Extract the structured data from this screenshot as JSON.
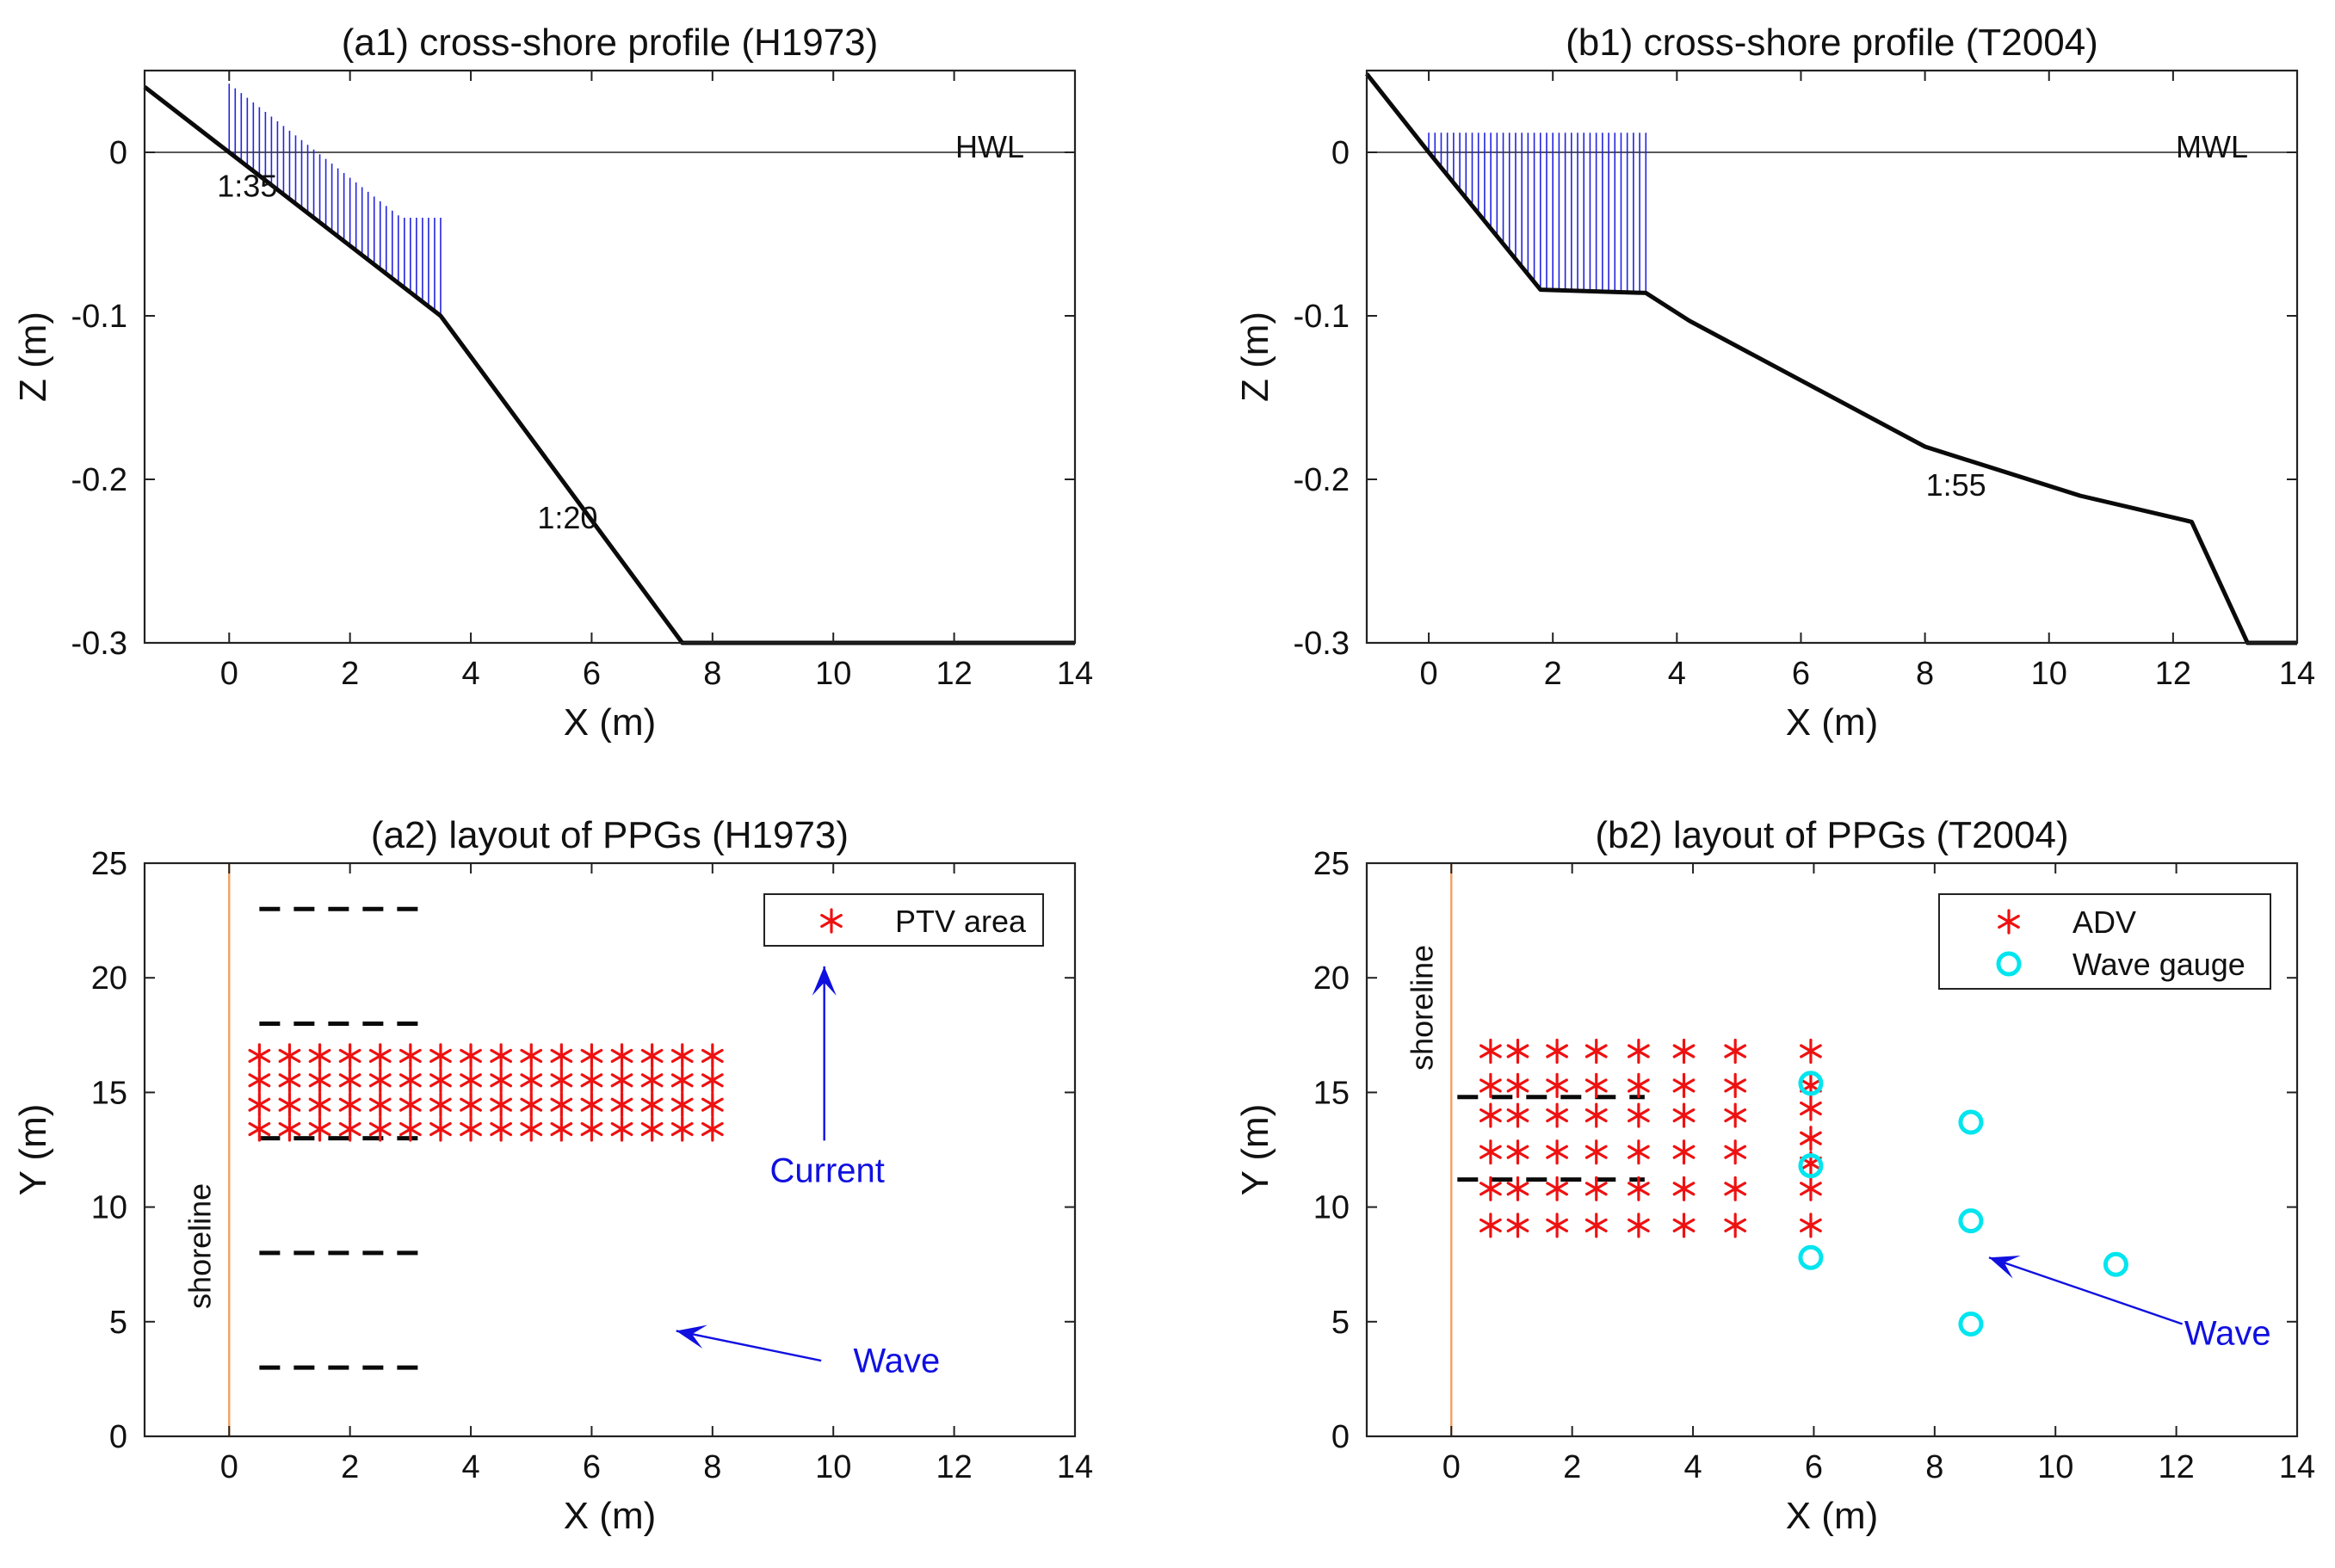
{
  "chart_data": [
    {
      "id": "a1",
      "type": "line",
      "title": "(a1) cross-shore profile (H1973)",
      "xlabel": "X (m)",
      "ylabel": "Z (m)",
      "xlim": [
        -1.4,
        14
      ],
      "ylim": [
        -0.3,
        0.05
      ],
      "xticks": [
        0,
        2,
        4,
        6,
        8,
        10,
        12,
        14
      ],
      "xtick_labels": [
        "0",
        "2",
        "4",
        "6",
        "8",
        "10",
        "12",
        "14"
      ],
      "yticks": [
        0,
        -0.1,
        -0.2,
        -0.3
      ],
      "ytick_labels": [
        "0",
        "-0.1",
        "-0.2",
        "-0.3"
      ],
      "profile": {
        "x": [
          -1.4,
          0,
          3.5,
          7.5,
          14
        ],
        "z": [
          0.04,
          0,
          -0.1,
          -0.3,
          -0.3
        ]
      },
      "water_level": 0,
      "water_level_label": "HWL",
      "measurement_lines": {
        "x_start": 0,
        "x_end": 3.5,
        "step": 0.1,
        "top": {
          "x": [
            0,
            2.85,
            3.5
          ],
          "z": [
            0.042,
            -0.04,
            -0.04
          ]
        }
      },
      "slope_labels": [
        {
          "text": "1:35",
          "x": 0.3,
          "z": -0.027
        },
        {
          "text": "1:20",
          "x": 5.6,
          "z": -0.23
        }
      ]
    },
    {
      "id": "b1",
      "type": "line",
      "title": "(b1) cross-shore profile (T2004)",
      "xlabel": "X (m)",
      "ylabel": "Z (m)",
      "xlim": [
        -1,
        14
      ],
      "ylim": [
        -0.3,
        0.05
      ],
      "xticks": [
        0,
        2,
        4,
        6,
        8,
        10,
        12,
        14
      ],
      "xtick_labels": [
        "0",
        "2",
        "4",
        "6",
        "8",
        "10",
        "12",
        "14"
      ],
      "yticks": [
        0,
        -0.1,
        -0.2,
        -0.3
      ],
      "ytick_labels": [
        "0",
        "-0.1",
        "-0.2",
        "-0.3"
      ],
      "profile": {
        "x": [
          -1,
          0,
          1.8,
          3.5,
          4.2,
          8,
          10.5,
          12.3,
          13.2,
          14
        ],
        "z": [
          0.048,
          0,
          -0.084,
          -0.086,
          -0.103,
          -0.18,
          -0.21,
          -0.226,
          -0.3,
          -0.3
        ]
      },
      "water_level": 0,
      "water_level_label": "MWL",
      "measurement_lines": {
        "x_start": 0,
        "x_end": 3.5,
        "step": 0.1,
        "top": {
          "x": [
            0,
            3.5
          ],
          "z": [
            0.012,
            0.012
          ]
        }
      },
      "slope_labels": [
        {
          "text": "1:55",
          "x": 8.5,
          "z": -0.21
        }
      ]
    },
    {
      "id": "a2",
      "type": "scatter",
      "title": "(a2) layout of PPGs (H1973)",
      "xlabel": "X (m)",
      "ylabel": "Y (m)",
      "xlim": [
        -1.4,
        14
      ],
      "ylim": [
        0,
        25
      ],
      "xticks": [
        0,
        2,
        4,
        6,
        8,
        10,
        12,
        14
      ],
      "xtick_labels": [
        "0",
        "2",
        "4",
        "6",
        "8",
        "10",
        "12",
        "14"
      ],
      "yticks": [
        0,
        5,
        10,
        15,
        20,
        25
      ],
      "ytick_labels": [
        "0",
        "5",
        "10",
        "15",
        "20",
        "25"
      ],
      "shoreline_label": "shoreline",
      "ppg_lines": [
        {
          "y": 3
        },
        {
          "y": 8
        },
        {
          "y": 13
        },
        {
          "y": 18
        },
        {
          "y": 23
        }
      ],
      "ppg_x_range": [
        0.5,
        3.2
      ],
      "series": [
        {
          "name": "PTV area",
          "marker": "*",
          "color": "#ee1111",
          "grid": {
            "x_start": 0.5,
            "x_end": 8,
            "x_step": 0.5,
            "y_start": 13.4,
            "y_end": 16.6,
            "y_step": 1.065
          }
        }
      ],
      "arrows": [
        {
          "label": "Current",
          "from": [
            9.85,
            12.9
          ],
          "to": [
            9.85,
            20.5
          ]
        },
        {
          "label": "Wave",
          "from": [
            9.8,
            3.3
          ],
          "to": [
            7.4,
            4.6
          ]
        }
      ]
    },
    {
      "id": "b2",
      "type": "scatter",
      "title": "(b2) layout of PPGs (T2004)",
      "xlabel": "X (m)",
      "ylabel": "Y (m)",
      "xlim": [
        -1.4,
        14
      ],
      "ylim": [
        0,
        25
      ],
      "xticks": [
        0,
        2,
        4,
        6,
        8,
        10,
        12,
        14
      ],
      "xtick_labels": [
        "0",
        "2",
        "4",
        "6",
        "8",
        "10",
        "12",
        "14"
      ],
      "yticks": [
        0,
        5,
        10,
        15,
        20,
        25
      ],
      "ytick_labels": [
        "0",
        "5",
        "10",
        "15",
        "20",
        "25"
      ],
      "shoreline_label": "shoreline",
      "ppg_lines": [
        {
          "y": 11.2
        },
        {
          "y": 14.8
        }
      ],
      "ppg_x_range": [
        0.1,
        3.2
      ],
      "series": [
        {
          "name": "ADV",
          "marker": "*",
          "color": "#ee1111",
          "columns_x": [
            0.65,
            1.1,
            1.75,
            2.4,
            3.1,
            3.85,
            4.7
          ],
          "rows_y": [
            9.2,
            10.8,
            12.4,
            14.0,
            15.3,
            16.8
          ],
          "extra_x": 5.95,
          "extra_y": [
            9.2,
            10.8,
            11.9,
            13.0,
            14.3,
            15.3,
            16.8
          ]
        },
        {
          "name": "Wave gauge",
          "marker": "o",
          "color": "#00e5ee",
          "x": [
            5.95,
            5.95,
            5.95,
            8.6,
            8.6,
            8.6,
            11.0
          ],
          "y": [
            7.8,
            11.8,
            15.4,
            4.9,
            9.4,
            13.7,
            7.5
          ]
        }
      ],
      "arrows": [
        {
          "label": "Wave",
          "from": [
            12.1,
            4.9
          ],
          "to": [
            8.9,
            7.8
          ]
        }
      ]
    }
  ]
}
